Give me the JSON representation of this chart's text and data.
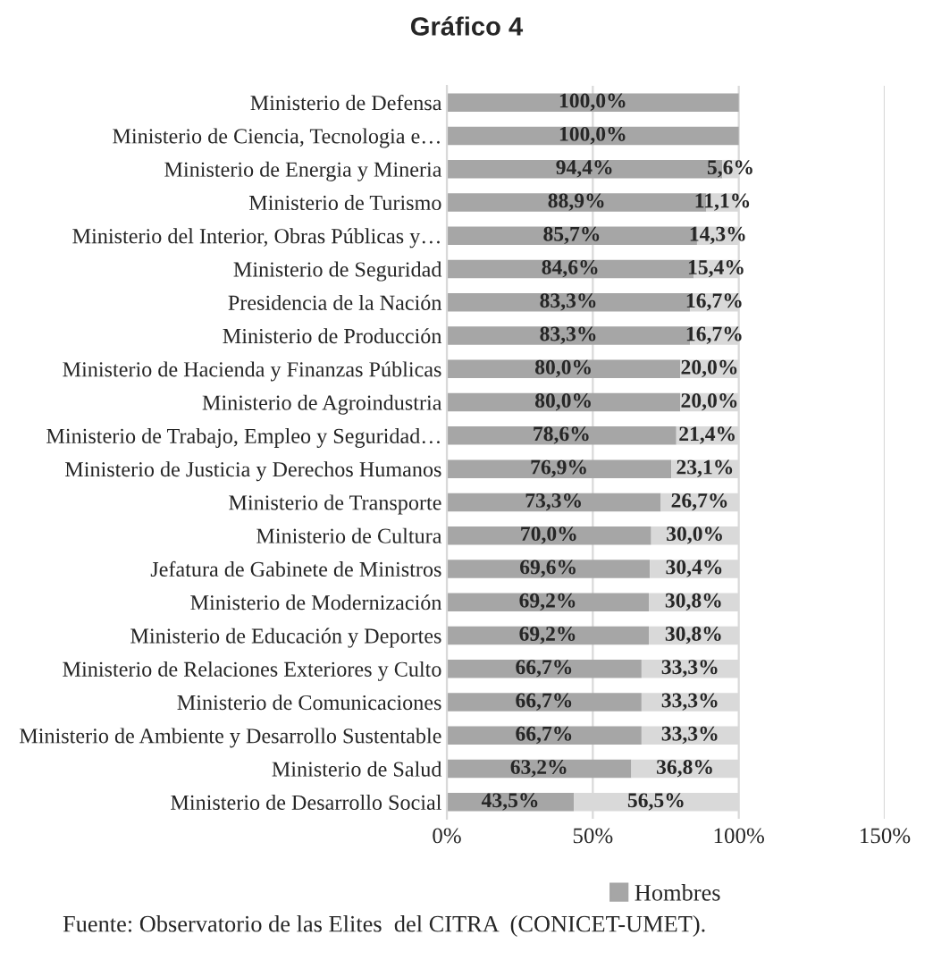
{
  "chart_data": {
    "type": "bar",
    "orientation": "horizontal",
    "stacked": true,
    "title": "Gráfico 4",
    "categories": [
      "Ministerio de Defensa",
      "Ministerio de Ciencia, Tecnologia e…",
      "Ministerio de Energia y Mineria",
      "Ministerio de Turismo",
      "Ministerio del Interior, Obras Públicas y…",
      "Ministerio de Seguridad",
      "Presidencia de la Nación",
      "Ministerio de Producción",
      "Ministerio de Hacienda y Finanzas Públicas",
      "Ministerio de Agroindustria",
      "Ministerio de Trabajo, Empleo y Seguridad…",
      "Ministerio de Justicia y Derechos Humanos",
      "Ministerio de Transporte",
      "Ministerio de Cultura",
      "Jefatura de Gabinete de Ministros",
      "Ministerio de Modernización",
      "Ministerio de Educación y Deportes",
      "Ministerio de Relaciones Exteriores y Culto",
      "Ministerio de Comunicaciones",
      "Ministerio de Ambiente y Desarrollo Sustentable",
      "Ministerio de Salud",
      "Ministerio de Desarrollo Social"
    ],
    "series": [
      {
        "name": "Hombres",
        "color": "#a6a6a6",
        "values": [
          100.0,
          100.0,
          94.4,
          88.9,
          85.7,
          84.6,
          83.3,
          83.3,
          80.0,
          80.0,
          78.6,
          76.9,
          73.3,
          70.0,
          69.6,
          69.2,
          69.2,
          66.7,
          66.7,
          66.7,
          63.2,
          43.5
        ],
        "value_labels": [
          "100,0%",
          "100,0%",
          "94,4%",
          "88,9%",
          "85,7%",
          "84,6%",
          "83,3%",
          "83,3%",
          "80,0%",
          "80,0%",
          "78,6%",
          "76,9%",
          "73,3%",
          "70,0%",
          "69,6%",
          "69,2%",
          "69,2%",
          "66,7%",
          "66,7%",
          "66,7%",
          "63,2%",
          "43,5%"
        ]
      },
      {
        "color": "#d9d9d9",
        "values": [
          null,
          null,
          5.6,
          11.1,
          14.3,
          15.4,
          16.7,
          16.7,
          20.0,
          20.0,
          21.4,
          23.1,
          26.7,
          30.0,
          30.4,
          30.8,
          30.8,
          33.3,
          33.3,
          33.3,
          36.8,
          56.5
        ],
        "value_labels": [
          null,
          null,
          "5,6%",
          "11,1%",
          "14,3%",
          "15,4%",
          "16,7%",
          "16,7%",
          "20,0%",
          "20,0%",
          "21,4%",
          "23,1%",
          "26,7%",
          "30,0%",
          "30,4%",
          "30,8%",
          "30,8%",
          "33,3%",
          "33,3%",
          "33,3%",
          "36,8%",
          "56,5%"
        ]
      }
    ],
    "xlim": [
      0,
      150
    ],
    "xticks": [
      {
        "value": 0,
        "label": "0%"
      },
      {
        "value": 50,
        "label": "50%"
      },
      {
        "value": 100,
        "label": "100%"
      },
      {
        "value": 150,
        "label": "150%"
      }
    ],
    "grid": "x",
    "legend": "bottom",
    "annotations": [
      "Fuente: Observatorio de las Elites  del CITRA  (CONICET-UMET)."
    ]
  }
}
